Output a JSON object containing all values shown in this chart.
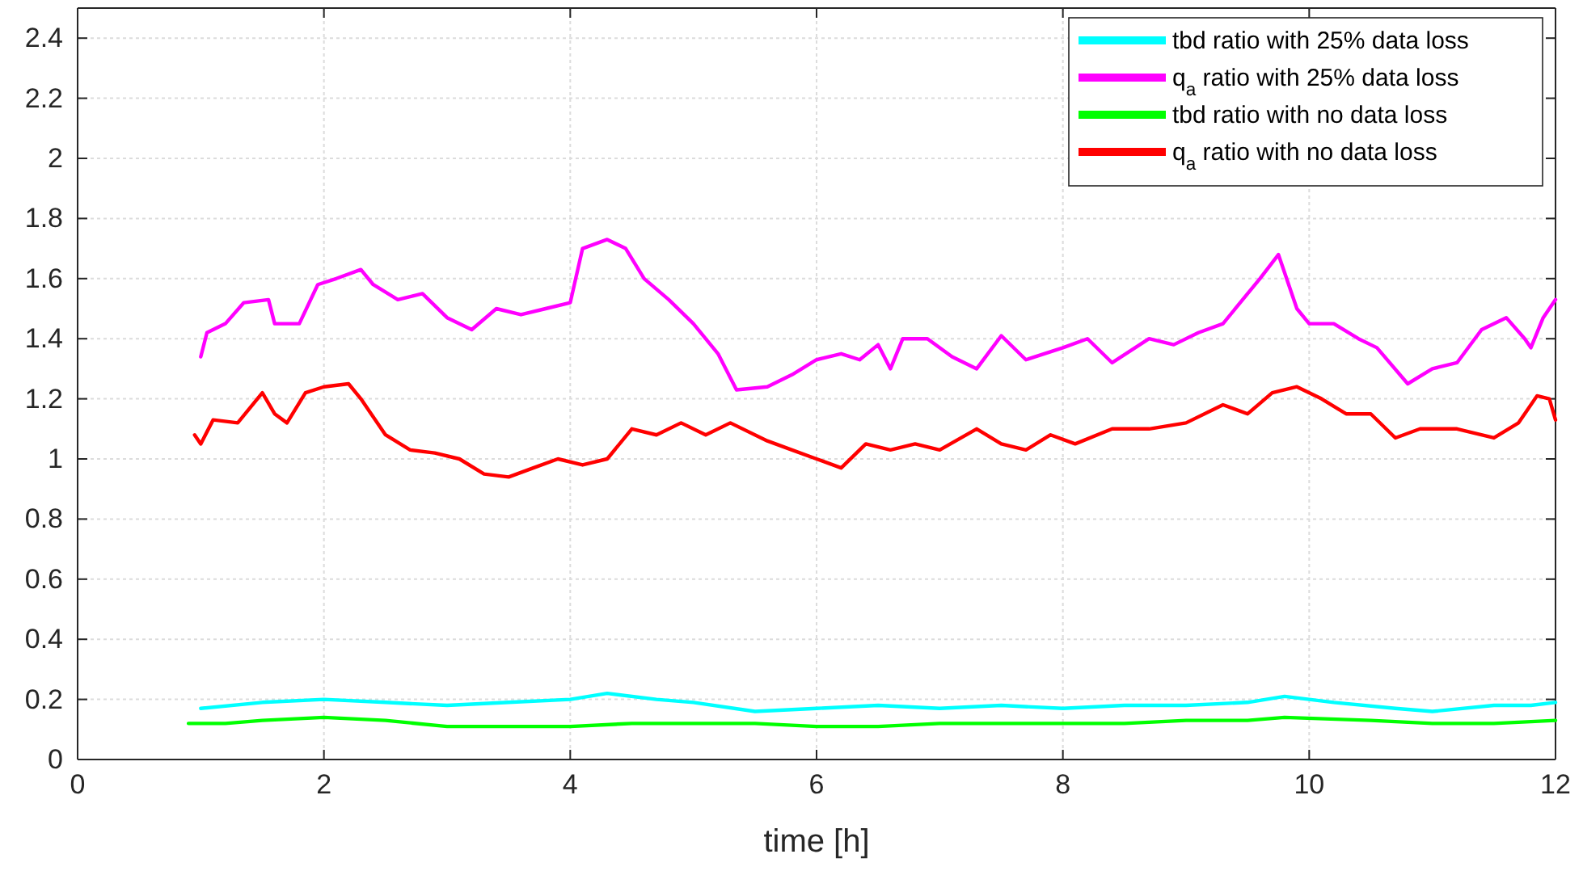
{
  "chart_data": {
    "type": "line",
    "xlabel": "time [h]",
    "xlim": [
      0,
      12
    ],
    "xticks": [
      0,
      2,
      4,
      6,
      8,
      10,
      12
    ],
    "ylim": [
      0,
      2.5
    ],
    "yticks": [
      0,
      0.2,
      0.4,
      0.6,
      0.8,
      1,
      1.2,
      1.4,
      1.6,
      1.8,
      2,
      2.2,
      2.4
    ],
    "grid": true,
    "legend": "top right",
    "line_style": "solid",
    "marker": "none",
    "series": [
      {
        "name": "tbd ratio with 25% data loss",
        "color": "#00ffff",
        "x": [
          1.0,
          1.5,
          2.0,
          2.5,
          3.0,
          3.5,
          4.0,
          4.3,
          4.7,
          5.0,
          5.5,
          6.0,
          6.5,
          7.0,
          7.5,
          8.0,
          8.5,
          9.0,
          9.5,
          9.8,
          10.2,
          10.7,
          11.0,
          11.5,
          11.8,
          12.0
        ],
        "values": [
          0.17,
          0.19,
          0.2,
          0.19,
          0.18,
          0.19,
          0.2,
          0.22,
          0.2,
          0.19,
          0.16,
          0.17,
          0.18,
          0.17,
          0.18,
          0.17,
          0.18,
          0.18,
          0.19,
          0.21,
          0.19,
          0.17,
          0.16,
          0.18,
          0.18,
          0.19
        ]
      },
      {
        "name": "q$_{a}$ ratio with 25% data loss",
        "color": "#ff00ff",
        "x": [
          1.0,
          1.05,
          1.2,
          1.35,
          1.55,
          1.6,
          1.8,
          1.95,
          2.1,
          2.3,
          2.4,
          2.6,
          2.8,
          3.0,
          3.2,
          3.4,
          3.6,
          3.8,
          4.0,
          4.1,
          4.3,
          4.45,
          4.6,
          4.8,
          5.0,
          5.2,
          5.35,
          5.6,
          5.8,
          6.0,
          6.2,
          6.35,
          6.5,
          6.6,
          6.7,
          6.9,
          7.1,
          7.3,
          7.5,
          7.7,
          8.0,
          8.2,
          8.4,
          8.7,
          8.9,
          9.1,
          9.3,
          9.5,
          9.6,
          9.75,
          9.9,
          10.0,
          10.2,
          10.4,
          10.55,
          10.8,
          11.0,
          11.2,
          11.4,
          11.6,
          11.75,
          11.8,
          11.9,
          12.0
        ],
        "values": [
          1.34,
          1.42,
          1.45,
          1.52,
          1.53,
          1.45,
          1.45,
          1.58,
          1.6,
          1.63,
          1.58,
          1.53,
          1.55,
          1.47,
          1.43,
          1.5,
          1.48,
          1.5,
          1.52,
          1.7,
          1.73,
          1.7,
          1.6,
          1.53,
          1.45,
          1.35,
          1.23,
          1.24,
          1.28,
          1.33,
          1.35,
          1.33,
          1.38,
          1.3,
          1.4,
          1.4,
          1.34,
          1.3,
          1.41,
          1.33,
          1.37,
          1.4,
          1.32,
          1.4,
          1.38,
          1.42,
          1.45,
          1.55,
          1.6,
          1.68,
          1.5,
          1.45,
          1.45,
          1.4,
          1.37,
          1.25,
          1.3,
          1.32,
          1.43,
          1.47,
          1.4,
          1.37,
          1.47,
          1.53
        ]
      },
      {
        "name": "tbd ratio with no data loss",
        "color": "#00ff00",
        "x": [
          0.9,
          1.2,
          1.5,
          2.0,
          2.5,
          3.0,
          3.5,
          4.0,
          4.5,
          5.0,
          5.5,
          6.0,
          6.5,
          7.0,
          7.5,
          8.0,
          8.5,
          9.0,
          9.5,
          9.8,
          10.5,
          11.0,
          11.5,
          12.0
        ],
        "values": [
          0.12,
          0.12,
          0.13,
          0.14,
          0.13,
          0.11,
          0.11,
          0.11,
          0.12,
          0.12,
          0.12,
          0.11,
          0.11,
          0.12,
          0.12,
          0.12,
          0.12,
          0.13,
          0.13,
          0.14,
          0.13,
          0.12,
          0.12,
          0.13
        ]
      },
      {
        "name": "q$_{a}$ ratio with no data loss",
        "color": "#ff0000",
        "x": [
          0.95,
          1.0,
          1.1,
          1.3,
          1.5,
          1.6,
          1.7,
          1.85,
          2.0,
          2.2,
          2.3,
          2.5,
          2.7,
          2.9,
          3.1,
          3.3,
          3.5,
          3.7,
          3.9,
          4.1,
          4.3,
          4.5,
          4.7,
          4.9,
          5.1,
          5.3,
          5.6,
          5.8,
          6.0,
          6.2,
          6.4,
          6.6,
          6.8,
          7.0,
          7.3,
          7.5,
          7.7,
          7.9,
          8.1,
          8.4,
          8.7,
          9.0,
          9.3,
          9.5,
          9.7,
          9.9,
          10.1,
          10.3,
          10.5,
          10.7,
          10.9,
          11.2,
          11.5,
          11.7,
          11.85,
          11.95,
          12.0
        ],
        "values": [
          1.08,
          1.05,
          1.13,
          1.12,
          1.22,
          1.15,
          1.12,
          1.22,
          1.24,
          1.25,
          1.2,
          1.08,
          1.03,
          1.02,
          1.0,
          0.95,
          0.94,
          0.97,
          1.0,
          0.98,
          1.0,
          1.1,
          1.08,
          1.12,
          1.08,
          1.12,
          1.06,
          1.03,
          1.0,
          0.97,
          1.05,
          1.03,
          1.05,
          1.03,
          1.1,
          1.05,
          1.03,
          1.08,
          1.05,
          1.1,
          1.1,
          1.12,
          1.18,
          1.15,
          1.22,
          1.24,
          1.2,
          1.15,
          1.15,
          1.07,
          1.1,
          1.1,
          1.07,
          1.12,
          1.21,
          1.2,
          1.13
        ]
      }
    ]
  }
}
